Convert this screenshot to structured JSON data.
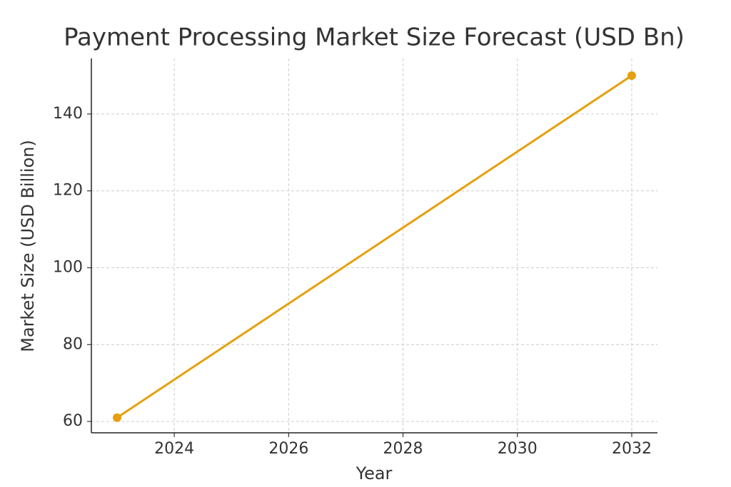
{
  "chart_data": {
    "type": "line",
    "title": "Payment Processing Market Size Forecast (USD Bn)",
    "x_label": "Year",
    "y_label": "Market Size (USD Billion)",
    "x": [
      2023,
      2032
    ],
    "series": [
      {
        "name": "Market Size",
        "color": "#e5a00d",
        "values": [
          61,
          150
        ]
      }
    ],
    "xlim": [
      2022.55,
      2032.45
    ],
    "xticks": [
      2024,
      2026,
      2028,
      2030,
      2032
    ],
    "ylim": [
      57.05,
      154.45
    ],
    "yticks": [
      60,
      80,
      100,
      120,
      140
    ],
    "grid": true,
    "legend": false
  }
}
